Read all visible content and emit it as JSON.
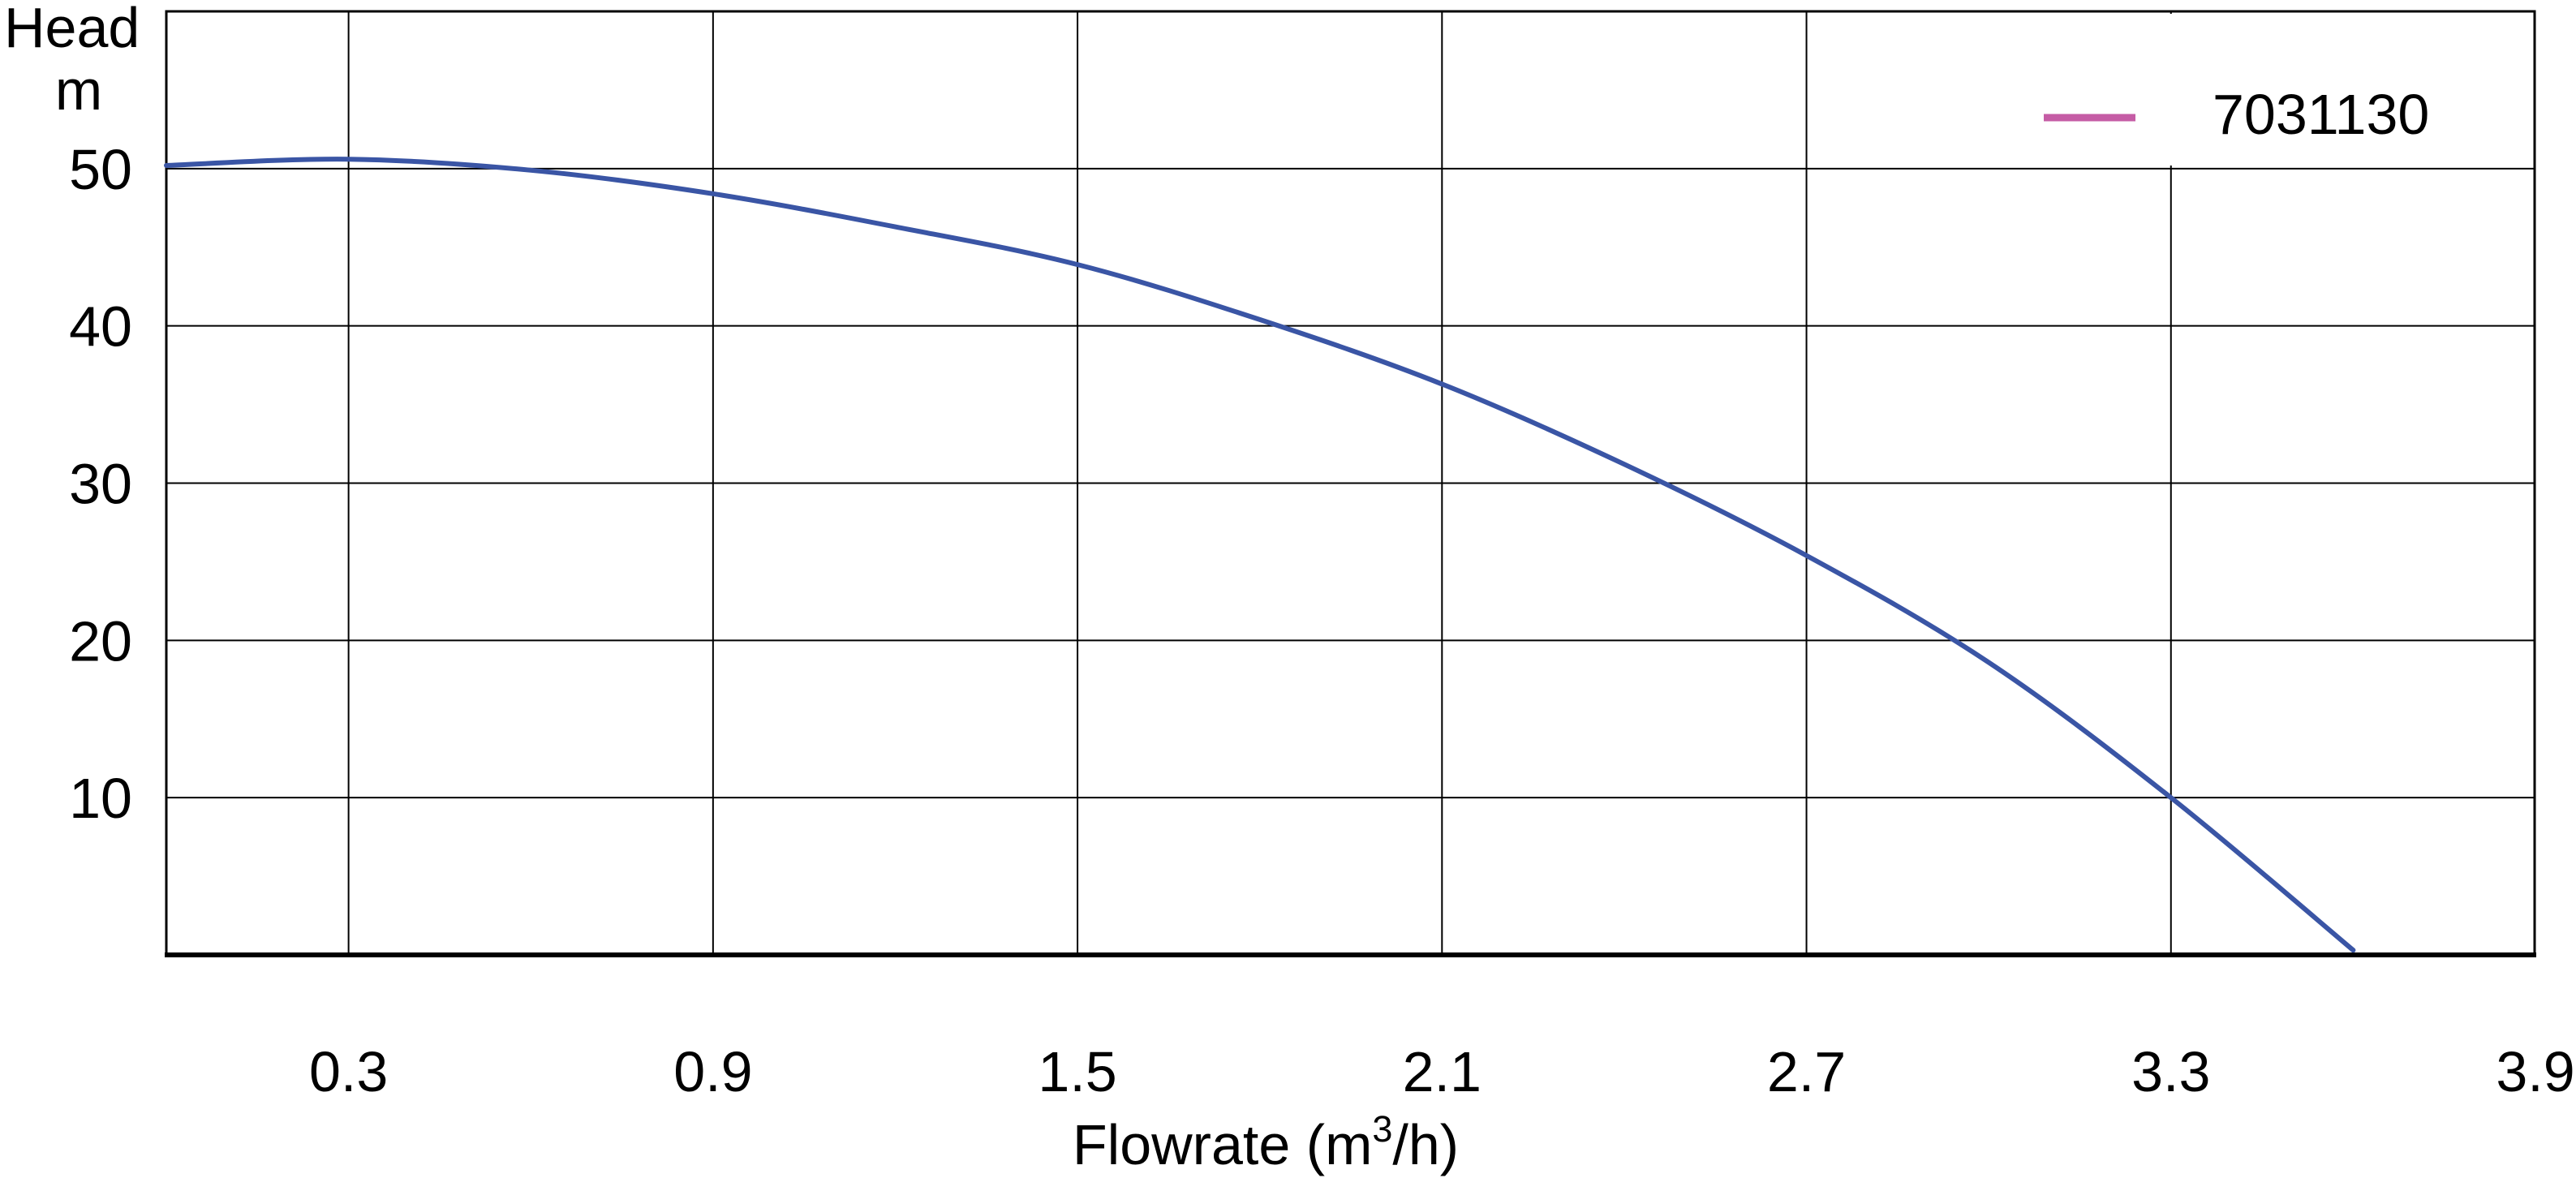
{
  "page": {
    "background": "#FFFFFF",
    "text_color": "#000000",
    "grid_color": "#000000"
  },
  "y_axis_title": {
    "line1": "Head",
    "line2": "m"
  },
  "x_axis_title": {
    "text": "Flowrate (m³/h)",
    "prefix": "Flowrate (m",
    "sup": "3",
    "suffix": "/h)"
  },
  "legend": {
    "label": "7031130",
    "swatch_color": "#C55CA5",
    "position": "top-right"
  },
  "chart_data": {
    "type": "line",
    "title": "",
    "xlabel": "Flowrate (m³/h)",
    "ylabel": "Head (m)",
    "xlim": [
      0,
      3.9
    ],
    "ylim": [
      0,
      60
    ],
    "grid": true,
    "legend_position": "top-right",
    "x_tick_values": [
      0.3,
      0.9,
      1.5,
      2.1,
      2.7,
      3.3,
      3.9
    ],
    "x_tick_labels": [
      "0.3",
      "0.9",
      "1.5",
      "2.1",
      "2.7",
      "3.3",
      "3.9"
    ],
    "x_gridline_values": [
      0.3,
      0.9,
      1.5,
      2.1,
      2.7,
      3.3
    ],
    "y_tick_values": [
      10,
      20,
      30,
      40,
      50
    ],
    "y_tick_labels": [
      "10",
      "20",
      "30",
      "40",
      "50"
    ],
    "y_gridline_values": [
      10,
      20,
      30,
      40,
      50
    ],
    "series": [
      {
        "name": "7031130",
        "line_color": "#3A55A5",
        "legend_swatch_color": "#C55CA5",
        "x": [
          0.0,
          0.3,
          0.6,
          0.9,
          1.2,
          1.5,
          1.8,
          2.1,
          2.4,
          2.7,
          3.0,
          3.3,
          3.6
        ],
        "y": [
          50.2,
          50.6,
          49.9,
          48.4,
          46.3,
          43.9,
          40.4,
          36.3,
          31.2,
          25.4,
          18.6,
          10.0,
          0.3
        ]
      }
    ]
  }
}
